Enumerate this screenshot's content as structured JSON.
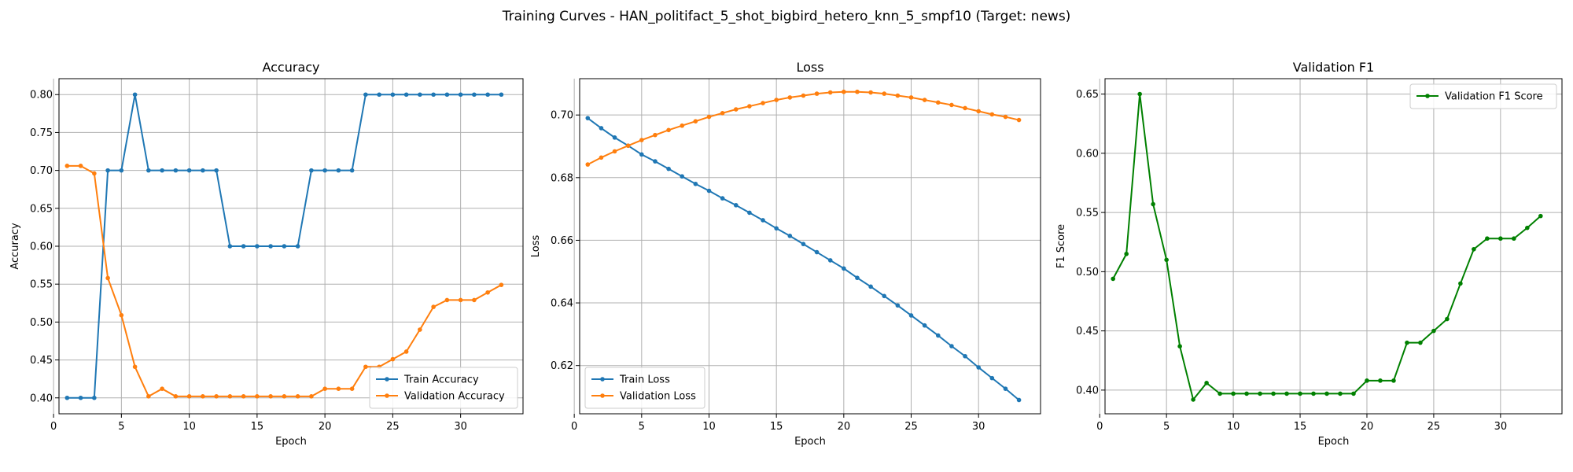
{
  "figure": {
    "suptitle": "Training Curves - HAN_politifact_5_shot_bigbird_hetero_knn_5_smpf10 (Target: news)"
  },
  "chart_data": [
    {
      "type": "line",
      "title": "Accuracy",
      "xlabel": "Epoch",
      "ylabel": "Accuracy",
      "xlim": [
        0.4,
        34.6
      ],
      "ylim": [
        0.379,
        0.821
      ],
      "xticks": [
        0,
        5,
        10,
        15,
        20,
        25,
        30
      ],
      "yticks": [
        0.4,
        0.45,
        0.5,
        0.55,
        0.6,
        0.65,
        0.7,
        0.75,
        0.8
      ],
      "ytick_format": 2,
      "grid": true,
      "legend": "lower-right",
      "x": [
        1,
        2,
        3,
        4,
        5,
        6,
        7,
        8,
        9,
        10,
        11,
        12,
        13,
        14,
        15,
        16,
        17,
        18,
        19,
        20,
        21,
        22,
        23,
        24,
        25,
        26,
        27,
        28,
        29,
        30,
        31,
        32,
        33
      ],
      "series": [
        {
          "name": "Train Accuracy",
          "color": "#1f77b4",
          "values": [
            0.4,
            0.4,
            0.4,
            0.7,
            0.7,
            0.8,
            0.7,
            0.7,
            0.7,
            0.7,
            0.7,
            0.7,
            0.6,
            0.6,
            0.6,
            0.6,
            0.6,
            0.6,
            0.7,
            0.7,
            0.7,
            0.7,
            0.8,
            0.8,
            0.8,
            0.8,
            0.8,
            0.8,
            0.8,
            0.8,
            0.8,
            0.8,
            0.8
          ]
        },
        {
          "name": "Validation Accuracy",
          "color": "#ff7f0e",
          "values": [
            0.706,
            0.706,
            0.696,
            0.558,
            0.509,
            0.441,
            0.402,
            0.412,
            0.402,
            0.402,
            0.402,
            0.402,
            0.402,
            0.402,
            0.402,
            0.402,
            0.402,
            0.402,
            0.402,
            0.412,
            0.412,
            0.412,
            0.441,
            0.441,
            0.451,
            0.461,
            0.49,
            0.52,
            0.529,
            0.529,
            0.529,
            0.539,
            0.549
          ]
        }
      ]
    },
    {
      "type": "line",
      "title": "Loss",
      "xlabel": "Epoch",
      "ylabel": "Loss",
      "xlim": [
        0.4,
        34.6
      ],
      "ylim": [
        0.6046,
        0.7116
      ],
      "xticks": [
        0,
        5,
        10,
        15,
        20,
        25,
        30
      ],
      "yticks": [
        0.62,
        0.64,
        0.66,
        0.68,
        0.7
      ],
      "ytick_format": 2,
      "grid": true,
      "legend": "lower-left",
      "x": [
        1,
        2,
        3,
        4,
        5,
        6,
        7,
        8,
        9,
        10,
        11,
        12,
        13,
        14,
        15,
        16,
        17,
        18,
        19,
        20,
        21,
        22,
        23,
        24,
        25,
        26,
        27,
        28,
        29,
        30,
        31,
        32,
        33
      ],
      "series": [
        {
          "name": "Train Loss",
          "color": "#1f77b4",
          "values": [
            0.699,
            0.6958,
            0.6928,
            0.6902,
            0.6874,
            0.6852,
            0.6828,
            0.6804,
            0.678,
            0.6758,
            0.6734,
            0.6712,
            0.6688,
            0.6664,
            0.6638,
            0.6614,
            0.6588,
            0.6562,
            0.6536,
            0.651,
            0.648,
            0.6452,
            0.6422,
            0.6392,
            0.636,
            0.6328,
            0.6296,
            0.6262,
            0.623,
            0.6194,
            0.616,
            0.6126,
            0.609
          ]
        },
        {
          "name": "Validation Loss",
          "color": "#ff7f0e",
          "values": [
            0.6842,
            0.6864,
            0.6884,
            0.6902,
            0.692,
            0.6936,
            0.6952,
            0.6966,
            0.698,
            0.6994,
            0.7006,
            0.7018,
            0.7028,
            0.7038,
            0.7048,
            0.7056,
            0.7062,
            0.7068,
            0.7072,
            0.7074,
            0.7074,
            0.7072,
            0.7068,
            0.7062,
            0.7056,
            0.7048,
            0.704,
            0.7032,
            0.7022,
            0.7012,
            0.7002,
            0.6994,
            0.6984
          ]
        }
      ]
    },
    {
      "type": "line",
      "title": "Validation F1",
      "xlabel": "Epoch",
      "ylabel": "F1 Score",
      "xlim": [
        0.4,
        34.6
      ],
      "ylim": [
        0.38,
        0.663
      ],
      "xticks": [
        0,
        5,
        10,
        15,
        20,
        25,
        30
      ],
      "yticks": [
        0.4,
        0.45,
        0.5,
        0.55,
        0.6,
        0.65
      ],
      "ytick_format": 2,
      "grid": true,
      "legend": "upper-right",
      "x": [
        1,
        2,
        3,
        4,
        5,
        6,
        7,
        8,
        9,
        10,
        11,
        12,
        13,
        14,
        15,
        16,
        17,
        18,
        19,
        20,
        21,
        22,
        23,
        24,
        25,
        26,
        27,
        28,
        29,
        30,
        31,
        32,
        33
      ],
      "series": [
        {
          "name": "Validation F1 Score",
          "color": "#008000",
          "values": [
            0.494,
            0.515,
            0.65,
            0.557,
            0.51,
            0.437,
            0.392,
            0.406,
            0.397,
            0.397,
            0.397,
            0.397,
            0.397,
            0.397,
            0.397,
            0.397,
            0.397,
            0.397,
            0.397,
            0.408,
            0.408,
            0.408,
            0.44,
            0.44,
            0.45,
            0.46,
            0.49,
            0.519,
            0.528,
            0.528,
            0.528,
            0.537,
            0.547
          ]
        }
      ]
    }
  ]
}
